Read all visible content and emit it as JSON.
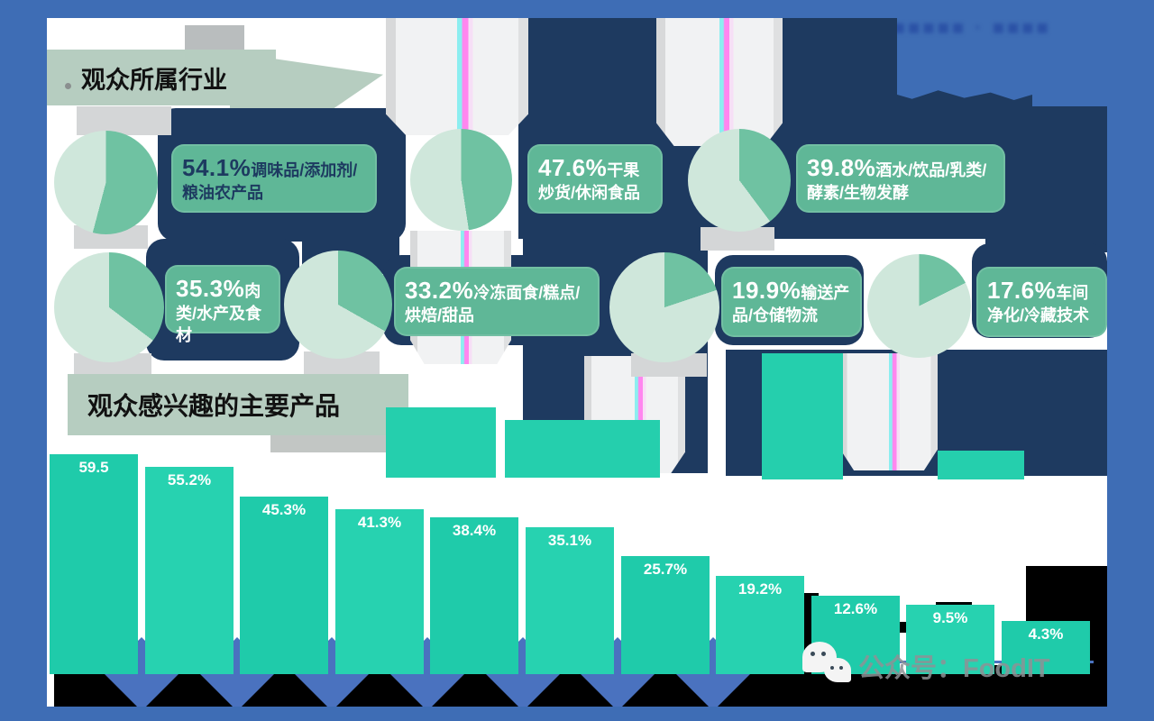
{
  "header": {
    "slogan_obscured": "■■■■ · ■■■■■ · ■■■■"
  },
  "chart_data": [
    {
      "type": "pie",
      "title": "观众所属行业",
      "slices": [
        {
          "display": "54.1%",
          "label": "调味品/添加剂/粮油农产品",
          "value": 54.1
        },
        {
          "display": "47.6%",
          "label": "干果炒货/休闲食品",
          "value": 47.6
        },
        {
          "display": "39.8%",
          "label": "酒水/饮品/乳类/酵素/生物发酵",
          "value": 39.8
        },
        {
          "display": "35.3%",
          "label": "肉类/水产及食材",
          "value": 35.3
        },
        {
          "display": "33.2%",
          "label": "冷冻面食/糕点/烘焙/甜品",
          "value": 33.2
        },
        {
          "display": "19.9%",
          "label": "输送产品/仓储物流",
          "value": 19.9
        },
        {
          "display": "17.6%",
          "label": "车间净化/冷藏技术",
          "value": 17.6
        }
      ]
    },
    {
      "type": "bar",
      "title": "观众感兴趣的主要产品",
      "labels": [
        "59.5",
        "55.2%",
        "45.3%",
        "41.3%",
        "38.4%",
        "35.1%",
        "25.7%",
        "19.2%",
        "12.6%",
        "9.5%",
        "4.3%"
      ],
      "values": [
        59.5,
        55.2,
        45.3,
        41.3,
        38.4,
        35.1,
        25.7,
        19.2,
        12.6,
        9.5,
        4.3
      ],
      "x_tick_labels_note": "category labels truncated / cut off at bottom edge, illegible",
      "legend": "none",
      "grid": "off"
    }
  ],
  "watermark": {
    "text": "公众号：FoodIT"
  },
  "colors": {
    "frame_blue": "#3e6db5",
    "navy": "#1e3a60",
    "chip_green": "#5fb797",
    "pie_dark": "#6fc2a2",
    "pie_light": "#cfe7db",
    "sage": "#b6cdc0",
    "bar_teal": "#1fcbaa",
    "bar_teal2": "#27d2b0",
    "diamond_blue": "#4a72bf",
    "watermark_gray": "#8e9296"
  }
}
